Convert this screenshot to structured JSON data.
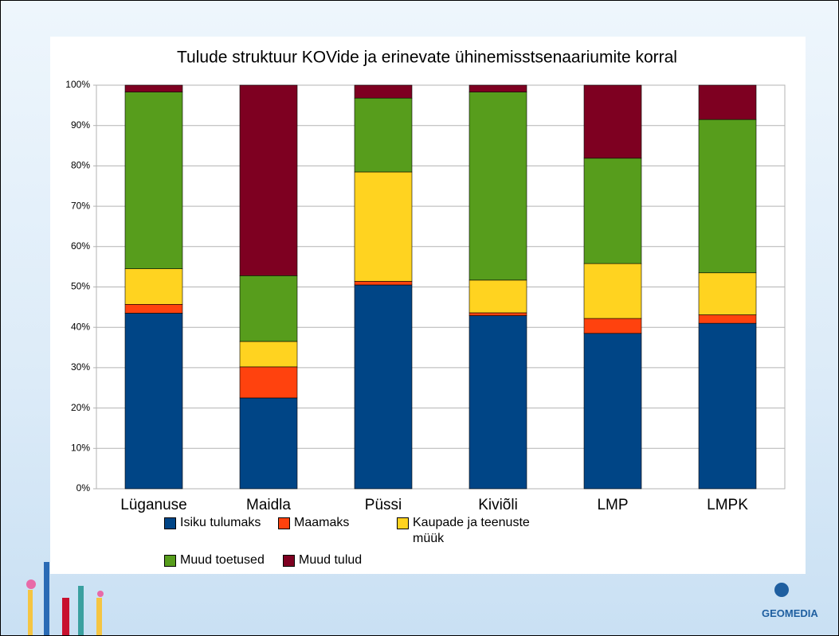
{
  "chart_data": {
    "type": "stacked_bar",
    "title": "Tulude struktuur KOVide ja erinevate ühinemisstsenaariumite korral",
    "categories": [
      "Lüganuse",
      "Maidla",
      "Püssi",
      "Kiviõli",
      "LMP",
      "LMPK"
    ],
    "series": [
      {
        "name": "Isiku tulumaks",
        "color": "#004586",
        "values": [
          43.5,
          22.5,
          50.5,
          42.9,
          38.5,
          41.0
        ]
      },
      {
        "name": "Maamaks",
        "color": "#ff420e",
        "values": [
          2.2,
          7.7,
          0.9,
          0.7,
          3.7,
          2.1
        ]
      },
      {
        "name": "Kaupade ja teenuste müük",
        "color": "#ffd320",
        "values": [
          8.8,
          6.3,
          27.1,
          8.1,
          13.6,
          10.4
        ]
      },
      {
        "name": "Muud toetused",
        "color": "#579d1c",
        "values": [
          43.8,
          16.3,
          18.3,
          46.6,
          26.1,
          38.0
        ]
      },
      {
        "name": "Muud tulud",
        "color": "#7e0021",
        "values": [
          1.7,
          47.2,
          3.2,
          1.7,
          18.1,
          8.5
        ]
      }
    ],
    "ylim": [
      0,
      100
    ],
    "yticks": [
      {
        "value": 0,
        "label": "0%"
      },
      {
        "value": 10,
        "label": "10%"
      },
      {
        "value": 20,
        "label": "20%"
      },
      {
        "value": 30,
        "label": "30%"
      },
      {
        "value": 40,
        "label": "40%"
      },
      {
        "value": 50,
        "label": "50%"
      },
      {
        "value": 60,
        "label": "60%"
      },
      {
        "value": 70,
        "label": "70%"
      },
      {
        "value": 80,
        "label": "80%"
      },
      {
        "value": 90,
        "label": "90%"
      },
      {
        "value": 100,
        "label": "100%"
      }
    ],
    "grid": true,
    "legend": "bottom"
  },
  "logo": "GEOMEDIA"
}
